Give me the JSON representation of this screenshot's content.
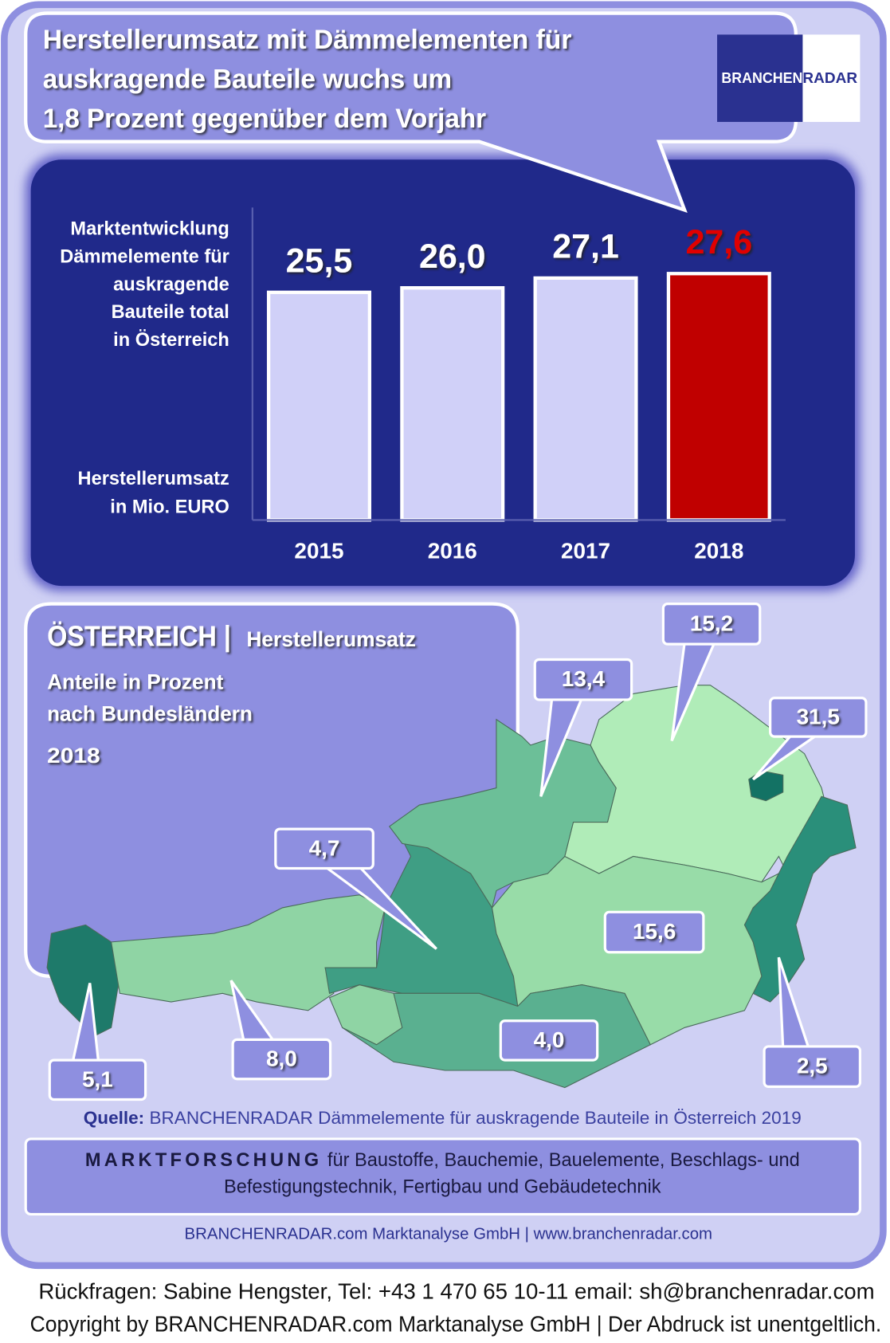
{
  "header": {
    "title_lines": [
      "Herstellerumsatz mit Dämmelementen für",
      "auskragende Bauteile wuchs um",
      "1,8 Prozent gegenüber dem Vorjahr"
    ],
    "logo": [
      "BRANCHEN",
      "RADAR"
    ]
  },
  "chart_data": [
    {
      "type": "bar",
      "y_label": [
        "Marktentwicklung",
        "Dämmelemente für",
        "auskragende",
        "Bauteile total",
        "in Österreich"
      ],
      "unit_label": [
        "Herstellerumsatz",
        "in Mio. EURO"
      ],
      "categories": [
        "2015",
        "2016",
        "2017",
        "2018"
      ],
      "values": [
        25.5,
        26.0,
        27.1,
        27.6
      ],
      "value_labels": [
        "25,5",
        "26,0",
        "27,1",
        "27,6"
      ],
      "colors": [
        "#d0d0f8",
        "#d0d0f8",
        "#d0d0f8",
        "#c00000"
      ],
      "label_colors": [
        "#ffffff",
        "#ffffff",
        "#ffffff",
        "#e00000"
      ],
      "ylim": [
        0,
        35
      ]
    },
    {
      "type": "map",
      "title": "ÖSTERREICH |",
      "subtitle": "Herstellerumsatz",
      "notes": [
        "Anteile in Prozent",
        "nach Bundesländern"
      ],
      "year": "2018",
      "values": [
        5.1,
        8.0,
        4.7,
        13.4,
        15.2,
        31.5,
        2.5,
        15.6,
        4.0
      ],
      "value_labels": [
        "5,1",
        "8,0",
        "4,7",
        "13,4",
        "15,2",
        "31,5",
        "2,5",
        "15,6",
        "4,0"
      ],
      "colors": [
        "#1e7a6a",
        "#8fd4a4",
        "#3f9e84",
        "#6cbf98",
        "#b0ecb8",
        "#137264",
        "#2a8f7a",
        "#98dca8",
        "#5ab090"
      ]
    }
  ],
  "source": {
    "label": "Quelle:",
    "text": "BRANCHENRADAR Dämmelemente für auskragende Bauteile in Österreich 2019"
  },
  "footer": {
    "highlight": "MARKTFORSCHUNG",
    "lines": [
      "für Baustoffe, Bauchemie, Bauelemente, Beschlags- und",
      "Befestigungstechnik, Fertigbau und Gebäudetechnik"
    ],
    "company": "BRANCHENRADAR.com Marktanalyse GmbH | www.branchenradar.com"
  },
  "contact": [
    "Rückfragen: Sabine Hengster, Tel: +43 1 470 65 10-11 email: sh@branchenradar.com",
    "Copyright by BRANCHENRADAR.com  Marktanalyse GmbH | Der Abdruck ist unentgeltlich."
  ]
}
